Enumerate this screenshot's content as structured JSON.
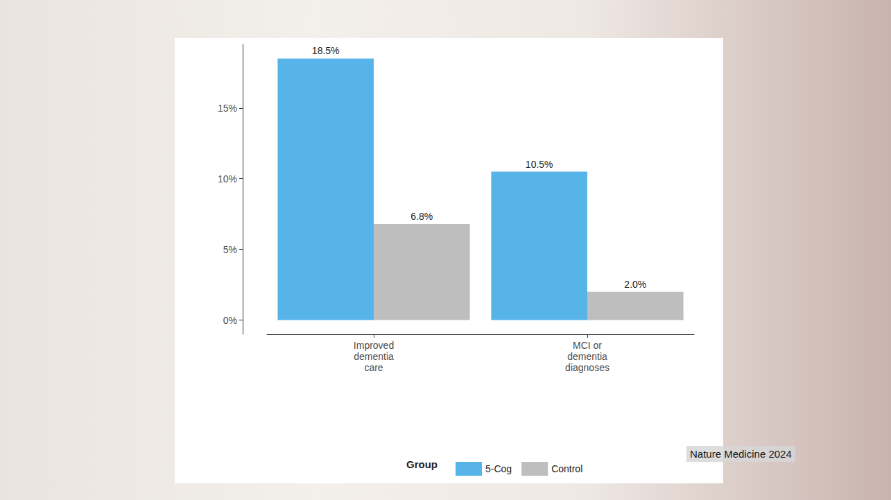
{
  "chart_data": {
    "type": "bar",
    "categories": [
      "Improved\ndementia\ncare",
      "MCI or\ndementia\ndiagnoses"
    ],
    "series": [
      {
        "name": "5-Cog",
        "color": "#56b4e9",
        "values": [
          18.5,
          10.5
        ],
        "value_labels": [
          "18.5%",
          "10.5%"
        ]
      },
      {
        "name": "Control",
        "color": "#bebebe",
        "values": [
          6.8,
          2.0
        ],
        "value_labels": [
          "6.8%",
          "2.0%"
        ]
      }
    ],
    "ylim": [
      -1,
      19.5
    ],
    "yticks": [
      {
        "value": 0,
        "label": "0%"
      },
      {
        "value": 5,
        "label": "5%"
      },
      {
        "value": 10,
        "label": "10%"
      },
      {
        "value": 15,
        "label": "15%"
      }
    ],
    "grid": false,
    "data_labels": true,
    "legend": "bottom",
    "legend_title": "Group",
    "annotation": "Nature Medicine 2024"
  }
}
